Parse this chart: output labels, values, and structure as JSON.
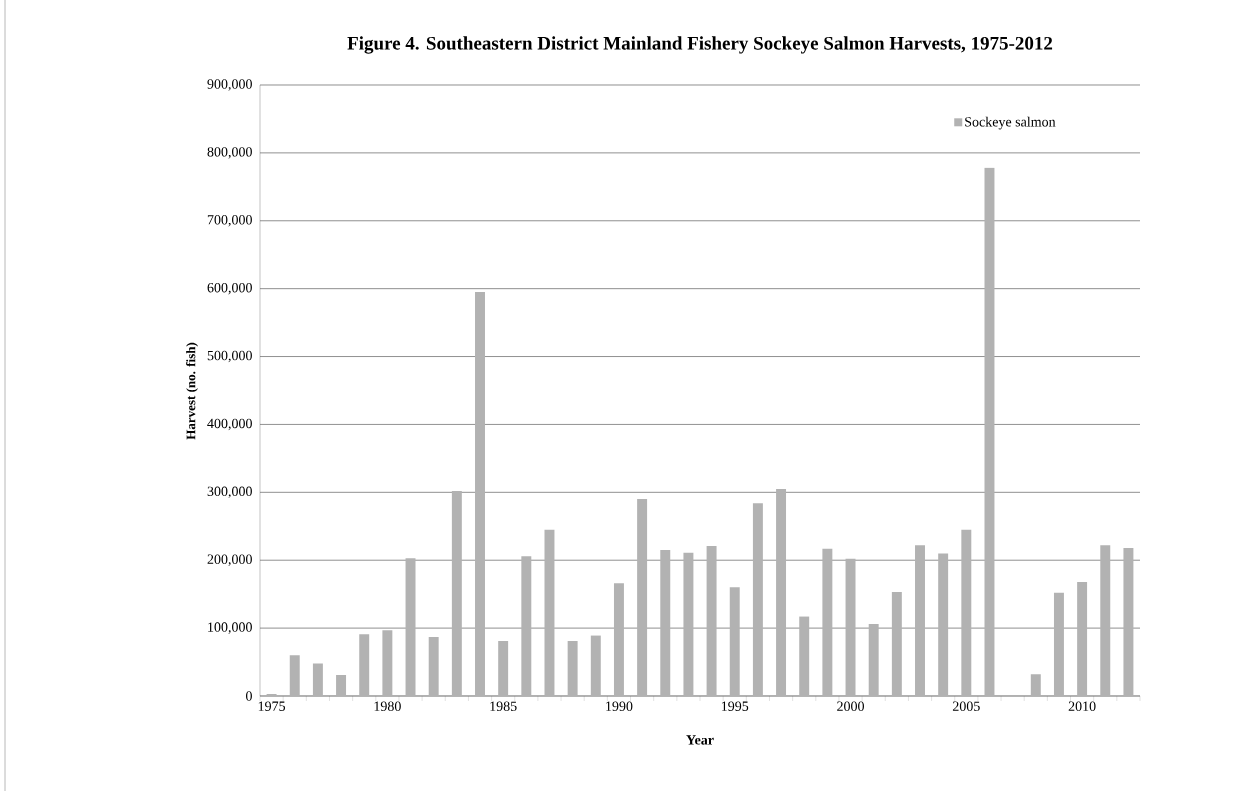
{
  "chart_data": {
    "type": "bar",
    "title": "Figure 4.  Southeastern District Mainland Fishery Sockeye Salmon Harvests, 1975-2012",
    "xlabel": "Year",
    "ylabel": "Harvest (no. fish)",
    "categories": [
      "1975",
      null,
      null,
      null,
      null,
      "1980",
      null,
      null,
      null,
      null,
      "1985",
      null,
      null,
      null,
      null,
      "1990",
      null,
      null,
      null,
      null,
      "1995",
      null,
      null,
      null,
      null,
      "2000",
      null,
      null,
      null,
      null,
      "2005",
      null,
      null,
      null,
      null,
      "2010",
      null,
      null
    ],
    "series": [
      {
        "name": "Sockeye salmon",
        "color": "#b2b2b2",
        "values": [
          3000,
          60000,
          48000,
          31000,
          91000,
          97000,
          203000,
          87000,
          302000,
          595000,
          81000,
          206000,
          245000,
          81000,
          89000,
          166000,
          290000,
          215000,
          211000,
          221000,
          160000,
          284000,
          305000,
          117000,
          217000,
          202000,
          106000,
          153000,
          222000,
          210000,
          245000,
          778000,
          null,
          32000,
          152000,
          168000,
          222000,
          218000
        ]
      }
    ],
    "ylim": [
      0,
      900000
    ],
    "yticks": [
      {
        "value": 0,
        "label": "0"
      },
      {
        "value": 100000,
        "label": "100,000"
      },
      {
        "value": 200000,
        "label": "200,000"
      },
      {
        "value": 300000,
        "label": "300,000"
      },
      {
        "value": 400000,
        "label": "400,000"
      },
      {
        "value": 500000,
        "label": "500,000"
      },
      {
        "value": 600000,
        "label": "600,000"
      },
      {
        "value": 700000,
        "label": "700,000"
      },
      {
        "value": 800000,
        "label": "800,000"
      },
      {
        "value": 900000,
        "label": "900,000"
      }
    ],
    "grid": "y",
    "legend": "top right"
  }
}
